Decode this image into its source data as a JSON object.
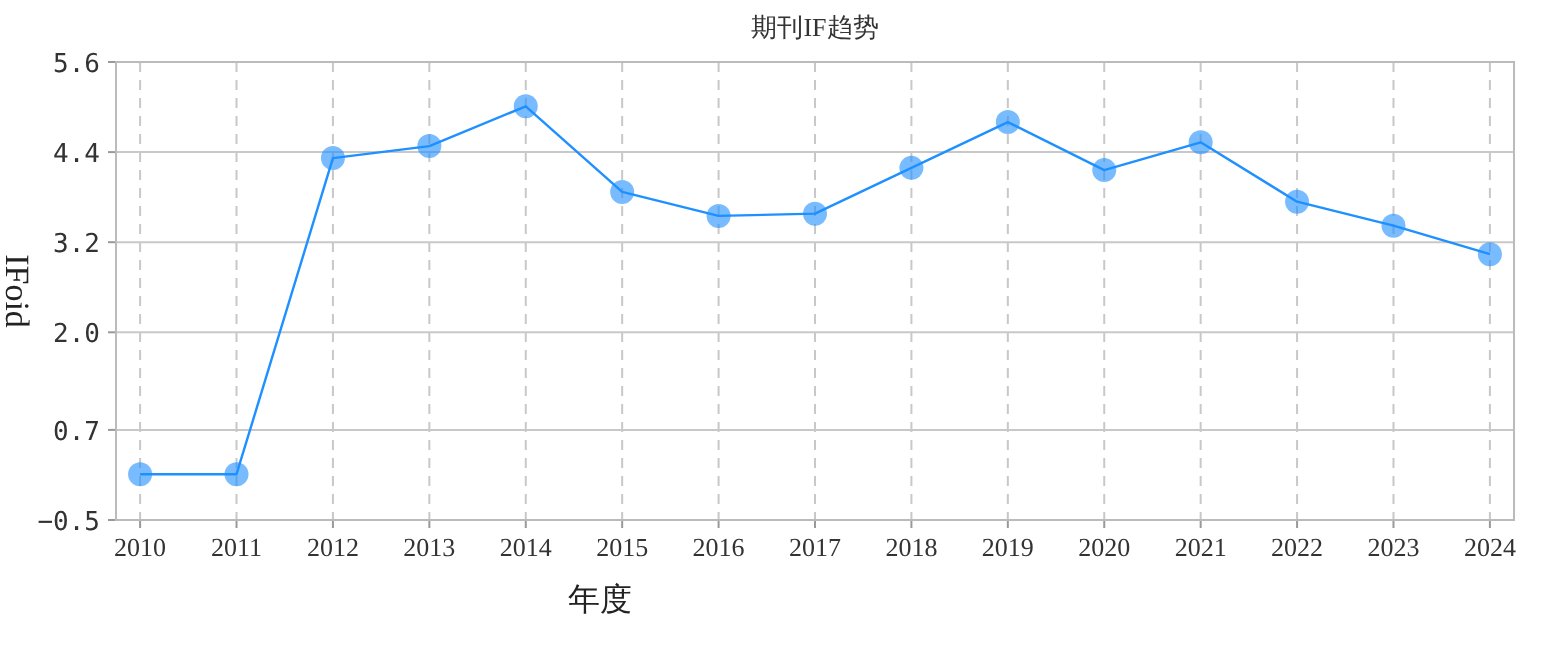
{
  "chart_data": {
    "type": "line",
    "title": "期刊IF趋势",
    "xlabel": "年度",
    "ylabel": "IFoid",
    "categories": [
      "2010",
      "2011",
      "2012",
      "2013",
      "2014",
      "2015",
      "2016",
      "2017",
      "2018",
      "2019",
      "2020",
      "2021",
      "2022",
      "2023",
      "2024"
    ],
    "series": [
      {
        "color": "#1e90ff",
        "values": [
          0.11,
          0.11,
          4.32,
          4.48,
          5.01,
          3.87,
          3.55,
          3.58,
          4.19,
          4.8,
          4.16,
          4.53,
          3.74,
          3.42,
          3.04
        ]
      }
    ],
    "ylim": [
      -0.5,
      5.6
    ],
    "yticks": [
      -0.5,
      0.7,
      {
        "value": 2.0,
        "label": "2.0"
      },
      3.2,
      4.4,
      5.6
    ],
    "grid": true,
    "marker": "circle",
    "line_style": "solid"
  }
}
